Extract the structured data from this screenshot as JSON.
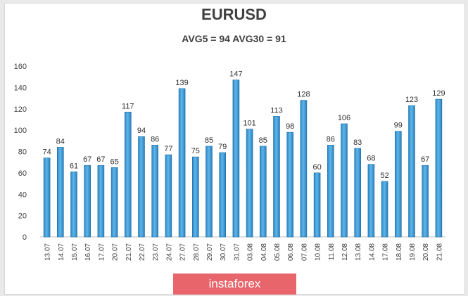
{
  "chart_data": {
    "type": "bar",
    "title": "EURUSD",
    "subtitle": "AVG5 = 94 AVG30 = 91",
    "categories": [
      "13.07",
      "14.07",
      "15.07",
      "16.07",
      "17.07",
      "20.07",
      "21.07",
      "22.07",
      "23.07",
      "24.07",
      "27.07",
      "28.07",
      "29.07",
      "30.07",
      "31.07",
      "03.08",
      "04.08",
      "05.08",
      "06.08",
      "07.08",
      "10.08",
      "11.08",
      "12.08",
      "13.08",
      "14.08",
      "17.08",
      "18.08",
      "19.08",
      "20.08",
      "21.08"
    ],
    "values": [
      74,
      84,
      61,
      67,
      67,
      65,
      117,
      94,
      86,
      77,
      139,
      75,
      85,
      79,
      147,
      101,
      85,
      113,
      98,
      128,
      60,
      86,
      106,
      83,
      68,
      52,
      99,
      123,
      67,
      129
    ],
    "ylim": [
      0,
      160
    ],
    "yticks": [
      0,
      20,
      40,
      60,
      80,
      100,
      120,
      140,
      160
    ],
    "grid": false,
    "legend": "none",
    "bar_color": "#3f9fd8",
    "bar_edge_color": "#1d6fa5"
  },
  "watermark": {
    "text": "instaforex",
    "color": "#e8656b"
  }
}
